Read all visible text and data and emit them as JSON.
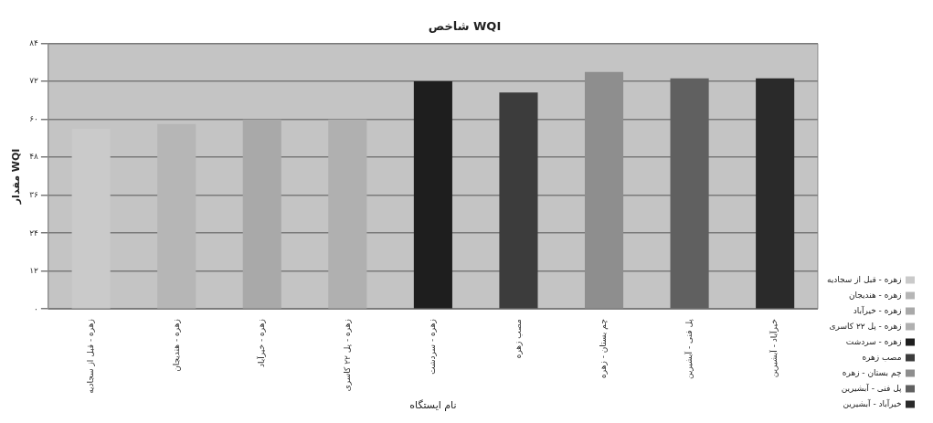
{
  "chart_data": {
    "type": "bar",
    "title": "شاخص WQI",
    "xlabel": "نام ایستگاه",
    "ylabel": "مقدار WQI",
    "categories": [
      "زهره - قبل از سجادیه",
      "زهره - هندیجان",
      "زهره - خیرآباد",
      "زهره - پل ۲۲ کاسری",
      "زهره - سردشت",
      "مصب زهره",
      "چم بستان - زهره",
      "پل فنی - آبشیرین",
      "خیرآباد - آبشیرین"
    ],
    "series": [
      {
        "name": "زهره - قبل از سجادیه",
        "color": "#cacaca",
        "values": [
          57,
          null,
          null,
          null,
          null,
          null,
          null,
          null,
          null
        ]
      },
      {
        "name": "زهره - هندیجان",
        "color": "#b6b6b6",
        "values": [
          null,
          58.5,
          null,
          null,
          null,
          null,
          null,
          null,
          null
        ]
      },
      {
        "name": "زهره - خیرآباد",
        "color": "#a9a9a9",
        "values": [
          null,
          null,
          60,
          null,
          null,
          null,
          null,
          null,
          null
        ]
      },
      {
        "name": "زهره - پل ۲۲ کاسری",
        "color": "#b0b0b0",
        "values": [
          null,
          null,
          null,
          60,
          null,
          null,
          null,
          null,
          null
        ]
      },
      {
        "name": "زهره - سردشت",
        "color": "#1e1e1e",
        "values": [
          null,
          null,
          null,
          null,
          72,
          null,
          null,
          null,
          null
        ]
      },
      {
        "name": "مصب زهره",
        "color": "#3c3c3c",
        "values": [
          null,
          null,
          null,
          null,
          null,
          68.5,
          null,
          null,
          null
        ]
      },
      {
        "name": "چم بستان - زهره",
        "color": "#8e8e8e",
        "values": [
          null,
          null,
          null,
          null,
          null,
          null,
          75,
          null,
          null
        ]
      },
      {
        "name": "پل فنی - آبشیرین",
        "color": "#606060",
        "values": [
          null,
          null,
          null,
          null,
          null,
          null,
          null,
          73,
          null
        ]
      },
      {
        "name": "خیرآباد - آبشیرین",
        "color": "#2a2a2a",
        "values": [
          null,
          null,
          null,
          null,
          null,
          null,
          null,
          null,
          73
        ]
      }
    ],
    "ylim": [
      0,
      84
    ],
    "yticks": [
      {
        "value": 0,
        "label": "۰"
      },
      {
        "value": 12,
        "label": "۱۲"
      },
      {
        "value": 24,
        "label": "۲۴"
      },
      {
        "value": 36,
        "label": "۳۶"
      },
      {
        "value": 48,
        "label": "۴۸"
      },
      {
        "value": 60,
        "label": "۶۰"
      },
      {
        "value": 72,
        "label": "۷۲"
      },
      {
        "value": 84,
        "label": "۸۴"
      }
    ],
    "grid": "y",
    "legend": "right"
  }
}
